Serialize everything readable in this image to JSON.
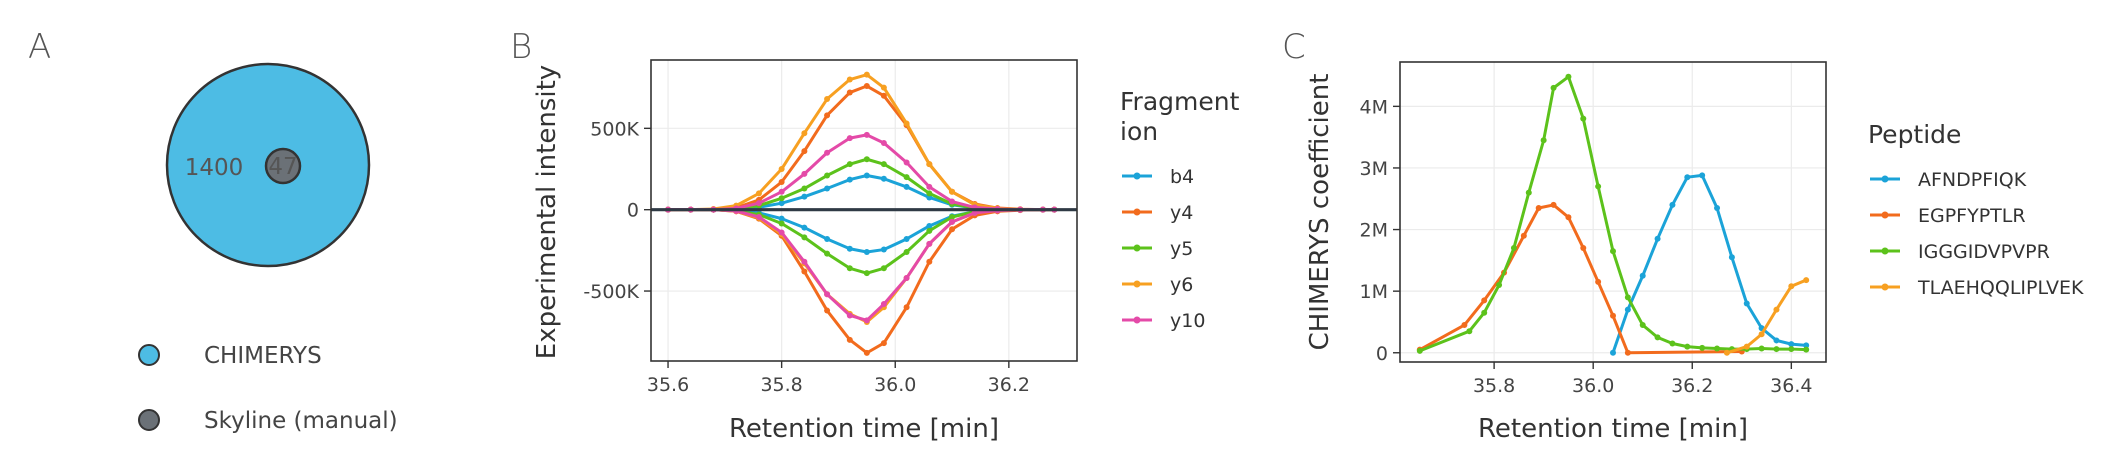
{
  "panels": {
    "a": "A",
    "b": "B",
    "c": "C"
  },
  "venn": {
    "big_value": "1400",
    "small_value": "47",
    "big_color": "#4dbce4",
    "small_color": "#6b7177",
    "legend": [
      "CHIMERYS",
      "Skyline (manual)"
    ]
  },
  "chart_data": [
    {
      "type": "line",
      "xlabel": "Retention time [min]",
      "ylabel": "Experimental intensity",
      "legend_title": "Fragment ion",
      "legend_title_lines": [
        "Fragment",
        "ion"
      ],
      "xlim": [
        35.57,
        36.32
      ],
      "ylim": [
        -930000,
        920000
      ],
      "xticks": [
        35.6,
        35.8,
        36.0,
        36.2
      ],
      "xtick_labels": [
        "35.6",
        "35.8",
        "36.0",
        "36.2"
      ],
      "yticks": [
        500000,
        0,
        -500000
      ],
      "ytick_labels": [
        "500K",
        "0",
        "-500K"
      ],
      "legend_position": "right",
      "x": [
        35.6,
        35.64,
        35.68,
        35.72,
        35.76,
        35.8,
        35.84,
        35.88,
        35.92,
        35.95,
        35.98,
        36.02,
        36.06,
        36.1,
        36.14,
        36.18,
        36.22,
        36.26,
        36.28
      ],
      "series": [
        {
          "name": "b4",
          "color": "#1ba3d8",
          "pos": [
            0,
            0,
            0,
            4000,
            15000,
            40000,
            80000,
            130000,
            185000,
            210000,
            190000,
            140000,
            75000,
            30000,
            10000,
            3000,
            1000,
            0,
            0
          ],
          "neg": [
            0,
            0,
            0,
            -5000,
            -20000,
            -55000,
            -110000,
            -180000,
            -240000,
            -260000,
            -245000,
            -180000,
            -100000,
            -40000,
            -12000,
            -4000,
            -1000,
            0,
            0
          ]
        },
        {
          "name": "y4",
          "color": "#f26b1d",
          "pos": [
            0,
            0,
            0,
            12000,
            60000,
            170000,
            360000,
            580000,
            720000,
            760000,
            700000,
            520000,
            280000,
            110000,
            35000,
            10000,
            3000,
            0,
            0
          ],
          "neg": [
            0,
            0,
            0,
            -10000,
            -55000,
            -160000,
            -380000,
            -620000,
            -800000,
            -880000,
            -820000,
            -600000,
            -320000,
            -120000,
            -35000,
            -10000,
            -3000,
            0,
            0
          ]
        },
        {
          "name": "y5",
          "color": "#5cc21b",
          "pos": [
            0,
            0,
            0,
            6000,
            25000,
            70000,
            130000,
            210000,
            280000,
            310000,
            280000,
            200000,
            100000,
            35000,
            10000,
            3000,
            1000,
            0,
            0
          ],
          "neg": [
            0,
            0,
            0,
            -7000,
            -30000,
            -85000,
            -170000,
            -270000,
            -360000,
            -390000,
            -360000,
            -260000,
            -130000,
            -45000,
            -12000,
            -3000,
            -1000,
            0,
            0
          ]
        },
        {
          "name": "y6",
          "color": "#f7a021",
          "pos": [
            0,
            0,
            4000,
            25000,
            100000,
            250000,
            470000,
            680000,
            800000,
            830000,
            750000,
            530000,
            280000,
            110000,
            30000,
            8000,
            2000,
            0,
            0
          ],
          "neg": [
            0,
            0,
            0,
            -10000,
            -50000,
            -150000,
            -330000,
            -520000,
            -640000,
            -690000,
            -600000,
            -420000,
            -210000,
            -75000,
            -20000,
            -5000,
            -1000,
            0,
            0
          ]
        },
        {
          "name": "y10",
          "color": "#e44aa8",
          "pos": [
            0,
            0,
            0,
            8000,
            40000,
            110000,
            220000,
            350000,
            440000,
            460000,
            410000,
            290000,
            140000,
            50000,
            14000,
            4000,
            1000,
            0,
            0
          ],
          "neg": [
            0,
            0,
            0,
            -8000,
            -45000,
            -140000,
            -320000,
            -520000,
            -650000,
            -680000,
            -580000,
            -420000,
            -210000,
            -75000,
            -20000,
            -5000,
            -1000,
            0,
            0
          ]
        }
      ]
    },
    {
      "type": "line",
      "xlabel": "Retention time [min]",
      "ylabel": "CHIMERYS coefficient",
      "legend_title": "Peptide",
      "xlim": [
        35.61,
        36.47
      ],
      "ylim": [
        -150000,
        4720000
      ],
      "xticks": [
        35.8,
        36.0,
        36.2,
        36.4
      ],
      "xtick_labels": [
        "35.8",
        "36.0",
        "36.2",
        "36.4"
      ],
      "yticks": [
        0,
        1000000,
        2000000,
        3000000,
        4000000
      ],
      "ytick_labels": [
        "0",
        "1M",
        "2M",
        "3M",
        "4M"
      ],
      "legend_position": "right",
      "series": [
        {
          "name": "AFNDPFIQK",
          "color": "#1ba3d8",
          "x": [
            36.04,
            36.07,
            36.1,
            36.13,
            36.16,
            36.19,
            36.22,
            36.25,
            36.28,
            36.31,
            36.34,
            36.37,
            36.4,
            36.43
          ],
          "y": [
            0,
            700000,
            1250000,
            1850000,
            2400000,
            2850000,
            2880000,
            2350000,
            1550000,
            800000,
            400000,
            200000,
            140000,
            120000
          ]
        },
        {
          "name": "EGPFYPTLR",
          "color": "#f26b1d",
          "x": [
            35.65,
            35.74,
            35.78,
            35.82,
            35.86,
            35.89,
            35.92,
            35.95,
            35.98,
            36.01,
            36.04,
            36.07,
            36.3
          ],
          "y": [
            50000,
            450000,
            850000,
            1300000,
            1900000,
            2350000,
            2400000,
            2200000,
            1700000,
            1150000,
            600000,
            0,
            20000
          ]
        },
        {
          "name": "IGGGIDVPVPR",
          "color": "#5cc21b",
          "x": [
            35.65,
            35.75,
            35.78,
            35.81,
            35.84,
            35.87,
            35.9,
            35.92,
            35.95,
            35.98,
            36.01,
            36.04,
            36.07,
            36.1,
            36.13,
            36.16,
            36.19,
            36.22,
            36.25,
            36.28,
            36.31,
            36.34,
            36.37,
            36.4,
            36.43
          ],
          "y": [
            30000,
            350000,
            650000,
            1100000,
            1700000,
            2600000,
            3450000,
            4300000,
            4480000,
            3800000,
            2700000,
            1650000,
            900000,
            450000,
            250000,
            150000,
            100000,
            80000,
            70000,
            60000,
            60000,
            70000,
            60000,
            60000,
            50000
          ]
        },
        {
          "name": "TLAEHQQLIPLVEK",
          "color": "#f7a021",
          "x": [
            36.27,
            36.31,
            36.34,
            36.37,
            36.4,
            36.43
          ],
          "y": [
            0,
            100000,
            300000,
            700000,
            1080000,
            1180000
          ]
        }
      ]
    }
  ]
}
